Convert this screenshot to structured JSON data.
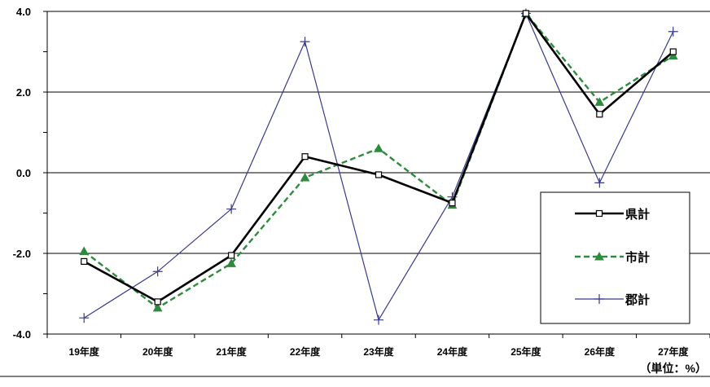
{
  "chart_data": {
    "type": "line",
    "categories": [
      "19年度",
      "20年度",
      "21年度",
      "22年度",
      "23年度",
      "24年度",
      "25年度",
      "26年度",
      "27年度"
    ],
    "series": [
      {
        "name": "県計",
        "values": [
          -2.2,
          -3.2,
          -2.05,
          0.4,
          -0.05,
          -0.75,
          3.95,
          1.45,
          3.0
        ],
        "color": "#000000",
        "line": "solid",
        "marker": "square-open"
      },
      {
        "name": "市計",
        "values": [
          -1.95,
          -3.35,
          -2.25,
          -0.12,
          0.6,
          -0.8,
          3.95,
          1.75,
          2.9
        ],
        "color": "#2e8b3d",
        "line": "dashed",
        "marker": "triangle-filled"
      },
      {
        "name": "郡計",
        "values": [
          -3.6,
          -2.45,
          -0.9,
          3.25,
          -3.65,
          -0.6,
          3.95,
          -0.25,
          3.5
        ],
        "color": "#3a3a8c",
        "line": "thin",
        "marker": "plus"
      }
    ],
    "ylim": [
      -4.0,
      4.0
    ],
    "yticks": [
      "4.0",
      "2.0",
      "0.0",
      "-2.0",
      "-4.0"
    ],
    "ytick_values": [
      4,
      2,
      0,
      -2,
      -4
    ],
    "grid": true,
    "legend_position": "bottom-right",
    "unit_note": "（単位：%）"
  }
}
